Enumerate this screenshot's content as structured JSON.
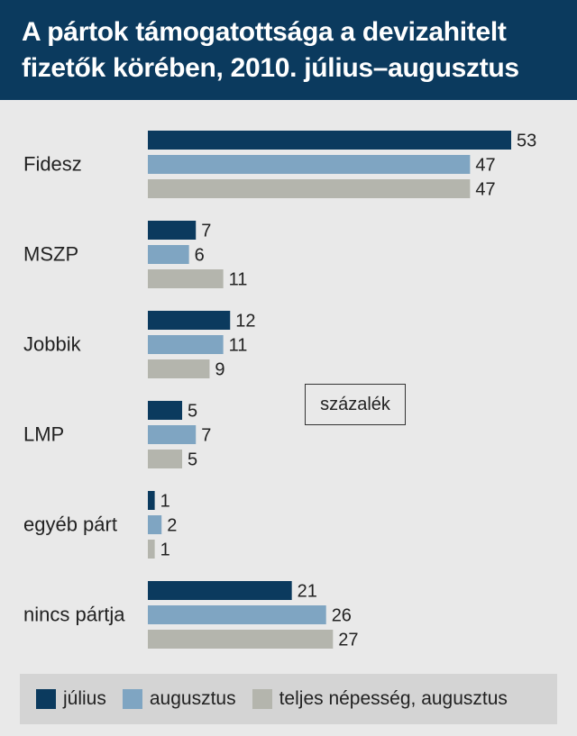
{
  "header": {
    "title_line1": "A pártok támogatottsága a devizahitelt",
    "title_line2": "fizetők körében, 2010. július–augusztus"
  },
  "unit_label": "százalék",
  "colors": {
    "header_bg": "#0b3a5e",
    "julius": "#0b3a5e",
    "augusztus": "#7fa5c2",
    "teljes": "#b4b5ad"
  },
  "chart_data": {
    "type": "bar",
    "orientation": "horizontal",
    "categories": [
      "Fidesz",
      "MSZP",
      "Jobbik",
      "LMP",
      "egyéb párt",
      "nincs pártja"
    ],
    "series": [
      {
        "name": "július",
        "values": [
          53,
          7,
          12,
          5,
          1,
          21
        ]
      },
      {
        "name": "augusztus",
        "values": [
          47,
          6,
          11,
          7,
          2,
          26
        ]
      },
      {
        "name": "teljes népesség, augusztus",
        "values": [
          47,
          11,
          9,
          5,
          1,
          27
        ]
      }
    ],
    "xlim": [
      0,
      53
    ],
    "unit": "százalék",
    "legend_position": "bottom",
    "grid": false
  }
}
